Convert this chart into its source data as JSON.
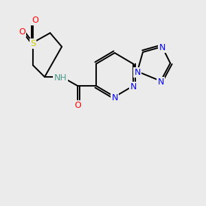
{
  "bg_color": "#ebebeb",
  "bond_color": "#000000",
  "bond_width": 1.5,
  "atom_bg": "#ebebeb",
  "colors": {
    "C": "#000000",
    "N": "#0000ff",
    "O": "#ff0000",
    "S": "#cccc00",
    "H": "#4a9a8a",
    "NH": "#4a9a8a"
  },
  "font_size": 9,
  "font_size_small": 8
}
